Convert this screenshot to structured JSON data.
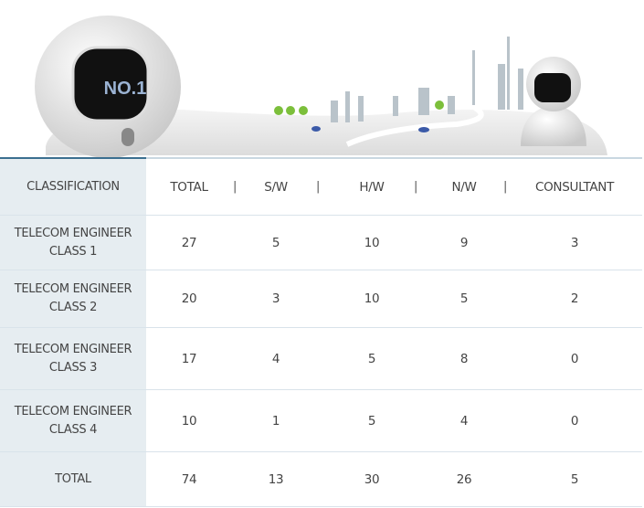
{
  "hero": {
    "badge_text": "NO.1"
  },
  "table": {
    "headers": [
      "CLASSIFICATION",
      "TOTAL",
      "S/W",
      "H/W",
      "N/W",
      "CONSULTANT"
    ],
    "separator": "|",
    "rows": [
      {
        "line1": "TELECOM ENGINEER",
        "line2": "CLASS 1",
        "values": [
          "27",
          "5",
          "10",
          "9",
          "3"
        ]
      },
      {
        "line1": "TELECOM ENGINEER",
        "line2": "CLASS 2",
        "values": [
          "20",
          "3",
          "10",
          "5",
          "2"
        ]
      },
      {
        "line1": "TELECOM ENGINEER",
        "line2": "CLASS 3",
        "values": [
          "17",
          "4",
          "5",
          "8",
          "0"
        ]
      },
      {
        "line1": "TELECOM ENGINEER",
        "line2": "CLASS 4",
        "values": [
          "10",
          "1",
          "5",
          "4",
          "0"
        ]
      },
      {
        "line1": "TOTAL",
        "line2": "",
        "values": [
          "74",
          "13",
          "30",
          "26",
          "5"
        ]
      }
    ]
  },
  "colors": {
    "accent": "#3b6f90",
    "label_bg": "#e6edf1"
  }
}
